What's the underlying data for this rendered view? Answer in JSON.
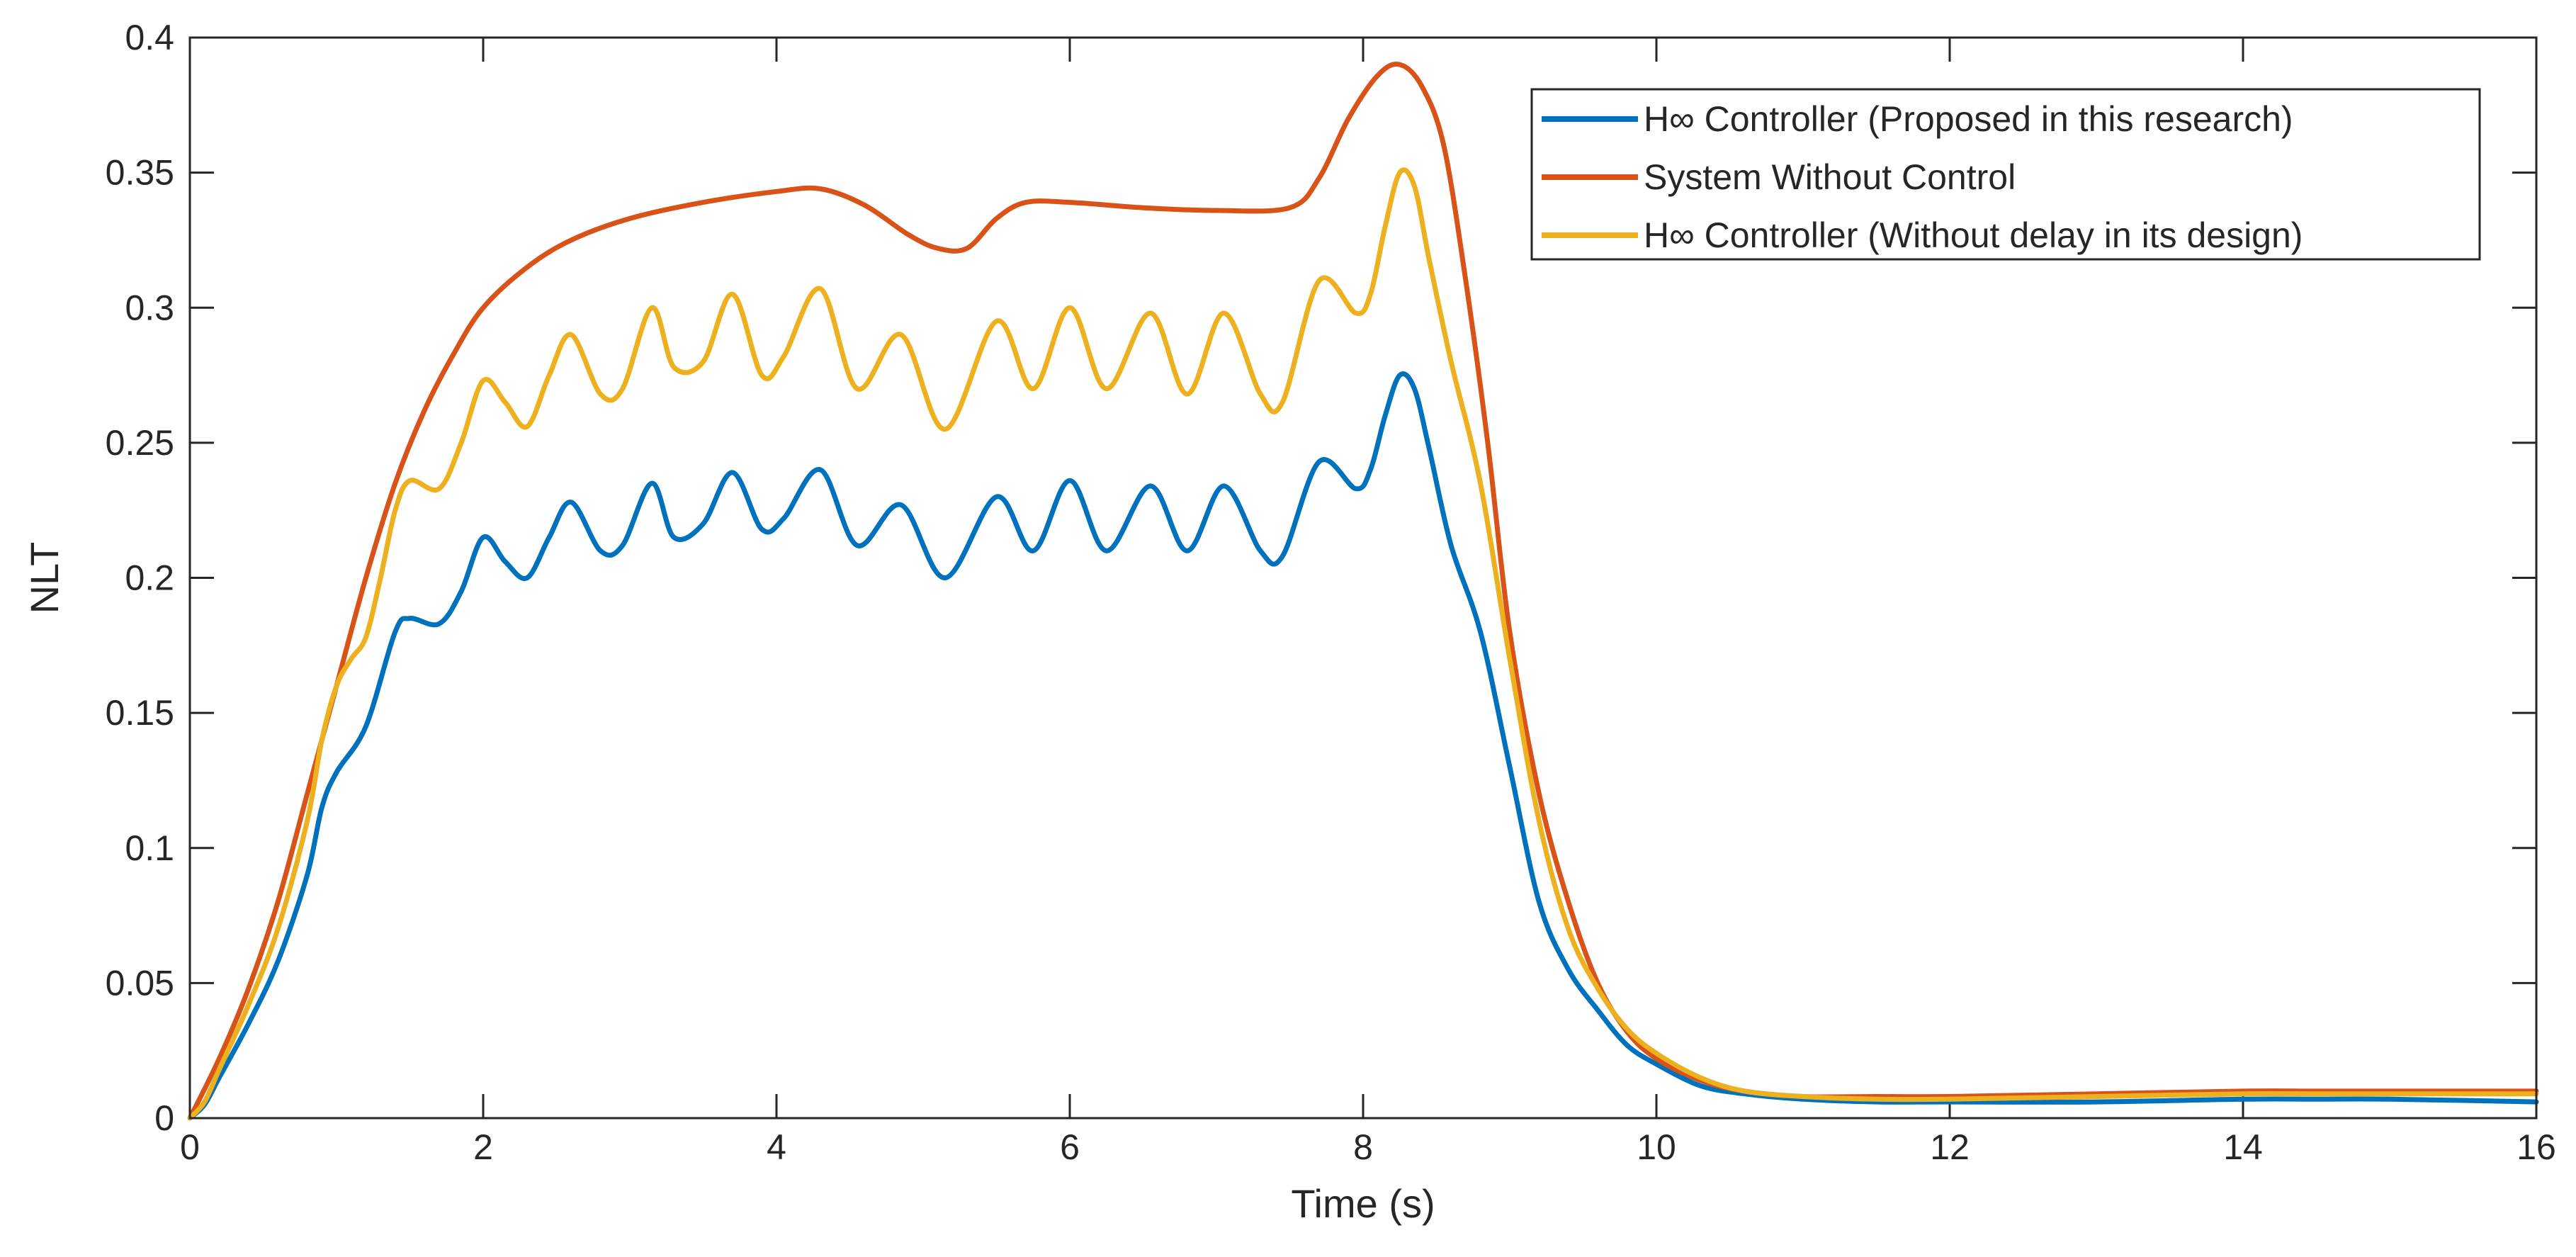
{
  "chart_data": {
    "type": "line",
    "title": "",
    "xlabel": "Time (s)",
    "ylabel": "NLT",
    "xlim": [
      0,
      16
    ],
    "ylim": [
      0,
      0.4
    ],
    "xticks": [
      0,
      2,
      4,
      6,
      8,
      10,
      12,
      14,
      16
    ],
    "xtick_labels": [
      "0",
      "2",
      "4",
      "6",
      "8",
      "10",
      "12",
      "14",
      "16"
    ],
    "yticks": [
      0,
      0.05,
      0.1,
      0.15,
      0.2,
      0.25,
      0.3,
      0.35,
      0.4
    ],
    "ytick_labels": [
      "0",
      "0.05",
      "0.1",
      "0.15",
      "0.2",
      "0.25",
      "0.3",
      "0.35",
      "0.4"
    ],
    "grid": false,
    "legend_position": "top-right",
    "series": [
      {
        "name": "H∞ Controller (Proposed in this research)",
        "color": "#0072BD",
        "x": [
          0,
          0.1,
          0.2,
          0.4,
          0.6,
          0.8,
          0.9,
          1.0,
          1.2,
          1.4,
          1.5,
          1.7,
          1.85,
          2.0,
          2.15,
          2.3,
          2.45,
          2.6,
          2.8,
          2.95,
          3.15,
          3.3,
          3.5,
          3.7,
          3.9,
          4.05,
          4.3,
          4.55,
          4.85,
          5.15,
          5.5,
          5.75,
          6.0,
          6.25,
          6.55,
          6.8,
          7.05,
          7.3,
          7.45,
          7.7,
          7.95,
          8.05,
          8.15,
          8.25,
          8.35,
          8.45,
          8.6,
          8.8,
          9.0,
          9.2,
          9.4,
          9.6,
          9.8,
          10.0,
          10.3,
          10.6,
          11.0,
          11.5,
          12.0,
          13.0,
          14.0,
          14.5,
          15.0,
          16.0
        ],
        "values": [
          0.0,
          0.005,
          0.015,
          0.035,
          0.058,
          0.09,
          0.115,
          0.128,
          0.145,
          0.18,
          0.185,
          0.183,
          0.195,
          0.215,
          0.206,
          0.2,
          0.215,
          0.228,
          0.21,
          0.212,
          0.235,
          0.215,
          0.22,
          0.239,
          0.218,
          0.222,
          0.24,
          0.212,
          0.227,
          0.2,
          0.23,
          0.21,
          0.236,
          0.21,
          0.234,
          0.21,
          0.234,
          0.21,
          0.208,
          0.243,
          0.233,
          0.24,
          0.26,
          0.275,
          0.27,
          0.248,
          0.212,
          0.18,
          0.13,
          0.08,
          0.055,
          0.04,
          0.027,
          0.02,
          0.012,
          0.009,
          0.007,
          0.006,
          0.006,
          0.006,
          0.007,
          0.007,
          0.007,
          0.006
        ]
      },
      {
        "name": "System Without Control",
        "color": "#D95319",
        "x": [
          0,
          0.2,
          0.4,
          0.6,
          0.8,
          1.0,
          1.2,
          1.4,
          1.6,
          1.8,
          2.0,
          2.3,
          2.6,
          3.0,
          3.5,
          4.0,
          4.3,
          4.6,
          4.9,
          5.1,
          5.3,
          5.5,
          5.7,
          6.0,
          6.5,
          7.0,
          7.5,
          7.7,
          7.9,
          8.1,
          8.25,
          8.4,
          8.55,
          8.7,
          8.85,
          9.0,
          9.2,
          9.4,
          9.6,
          9.8,
          10.0,
          10.3,
          10.6,
          11.0,
          11.5,
          12.0,
          13.0,
          14.0,
          14.5,
          15.0,
          16.0
        ],
        "values": [
          0.0,
          0.022,
          0.048,
          0.08,
          0.12,
          0.16,
          0.2,
          0.235,
          0.262,
          0.283,
          0.3,
          0.315,
          0.325,
          0.333,
          0.339,
          0.343,
          0.344,
          0.338,
          0.327,
          0.322,
          0.322,
          0.333,
          0.339,
          0.339,
          0.337,
          0.336,
          0.337,
          0.348,
          0.37,
          0.386,
          0.39,
          0.382,
          0.36,
          0.31,
          0.25,
          0.18,
          0.12,
          0.08,
          0.05,
          0.032,
          0.022,
          0.014,
          0.01,
          0.008,
          0.008,
          0.008,
          0.009,
          0.01,
          0.01,
          0.01,
          0.01
        ]
      },
      {
        "name": "H∞ Controller (Without delay in its design)",
        "color": "#EDB120",
        "x": [
          0,
          0.1,
          0.2,
          0.4,
          0.6,
          0.8,
          0.9,
          1.0,
          1.1,
          1.2,
          1.3,
          1.4,
          1.5,
          1.7,
          1.85,
          2.0,
          2.15,
          2.3,
          2.45,
          2.6,
          2.8,
          2.95,
          3.15,
          3.3,
          3.5,
          3.7,
          3.9,
          4.05,
          4.3,
          4.55,
          4.85,
          5.15,
          5.5,
          5.75,
          6.0,
          6.25,
          6.55,
          6.8,
          7.05,
          7.3,
          7.45,
          7.7,
          7.95,
          8.05,
          8.15,
          8.25,
          8.35,
          8.45,
          8.6,
          8.8,
          9.0,
          9.2,
          9.4,
          9.6,
          9.8,
          10.0,
          10.3,
          10.6,
          11.0,
          11.5,
          12.0,
          13.0,
          14.0,
          14.5,
          15.0,
          16.0
        ],
        "values": [
          0.0,
          0.006,
          0.018,
          0.042,
          0.07,
          0.11,
          0.14,
          0.16,
          0.17,
          0.178,
          0.2,
          0.225,
          0.236,
          0.233,
          0.25,
          0.273,
          0.265,
          0.256,
          0.275,
          0.29,
          0.268,
          0.27,
          0.3,
          0.278,
          0.28,
          0.305,
          0.275,
          0.282,
          0.307,
          0.27,
          0.29,
          0.255,
          0.295,
          0.27,
          0.3,
          0.27,
          0.298,
          0.268,
          0.298,
          0.268,
          0.265,
          0.31,
          0.298,
          0.305,
          0.33,
          0.35,
          0.345,
          0.318,
          0.28,
          0.235,
          0.17,
          0.11,
          0.07,
          0.048,
          0.033,
          0.024,
          0.015,
          0.01,
          0.008,
          0.007,
          0.007,
          0.008,
          0.009,
          0.009,
          0.009,
          0.009
        ]
      }
    ]
  }
}
